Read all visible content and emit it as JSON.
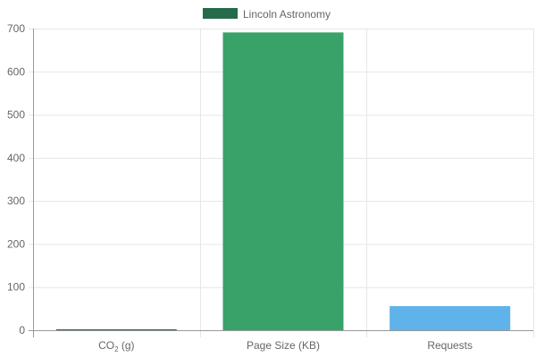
{
  "chart_data": {
    "type": "bar",
    "categories": [
      "CO",
      "Page Size (KB)",
      "Requests"
    ],
    "category_parts": {
      "co2": {
        "base": "CO",
        "subscript": "2",
        "suffix": " (g)"
      }
    },
    "series": [
      {
        "name": "Lincoln Astronomy",
        "values": [
          0.4,
          691,
          56
        ],
        "colors": [
          "#236b4a",
          "#38a269",
          "#5fb3ea"
        ]
      }
    ],
    "legend": {
      "position": "top",
      "swatch_color": "#236b4a"
    },
    "ylim": [
      0,
      700
    ],
    "yticks": [
      0,
      100,
      200,
      300,
      400,
      500,
      600,
      700
    ],
    "grid": true,
    "colors": {
      "grid": "#e6e6e6",
      "axis": "#999999",
      "text": "#666666"
    }
  }
}
